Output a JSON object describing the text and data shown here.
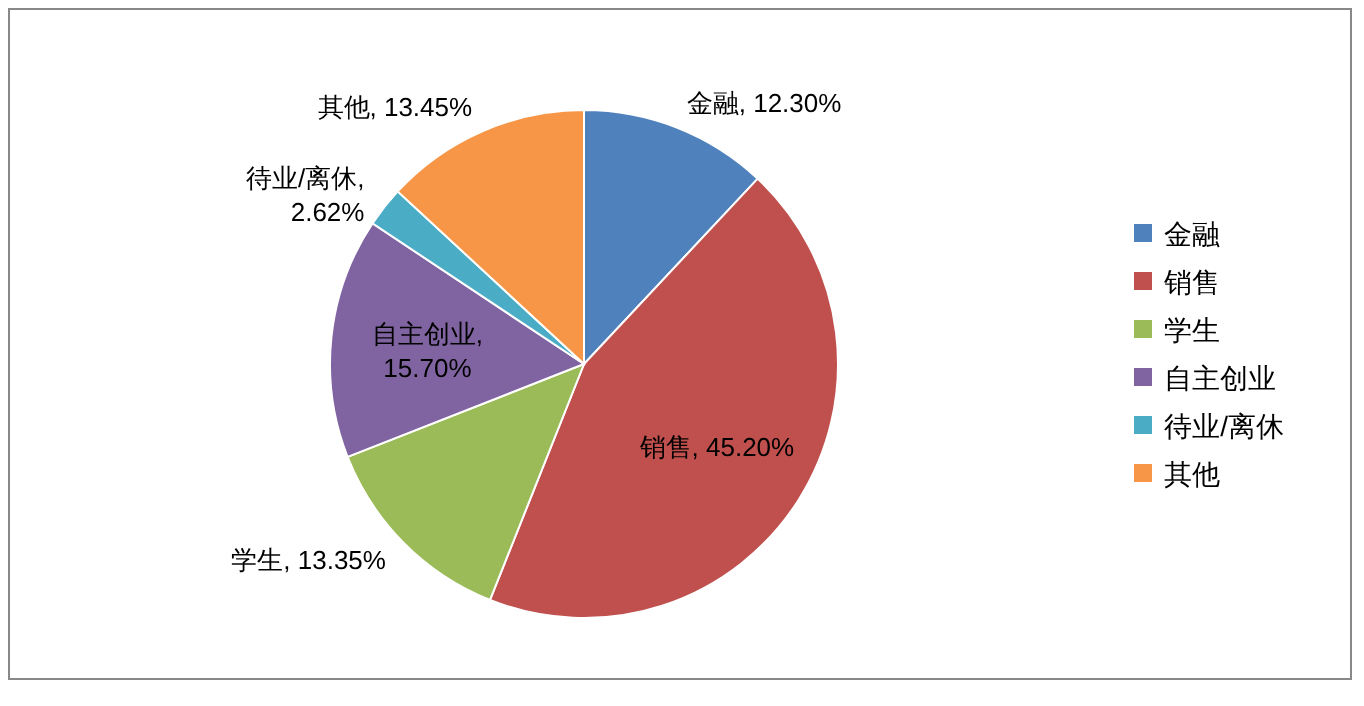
{
  "chart_data": {
    "type": "pie",
    "categories": [
      "金融",
      "销售",
      "学生",
      "自主创业",
      "待业/离休",
      "其他"
    ],
    "values": [
      12.3,
      45.2,
      13.35,
      15.7,
      2.62,
      13.45
    ],
    "value_labels": [
      "金融, 12.30%",
      "销售, 45.20%",
      "学生, 13.35%",
      "自主创业, 15.70%",
      "待业/离休, 2.62%",
      "其他, 13.45%"
    ],
    "colors": [
      "#4f81bd",
      "#c0504d",
      "#9bbb59",
      "#8064a2",
      "#4bacc6",
      "#f79646"
    ],
    "legend": "right"
  }
}
